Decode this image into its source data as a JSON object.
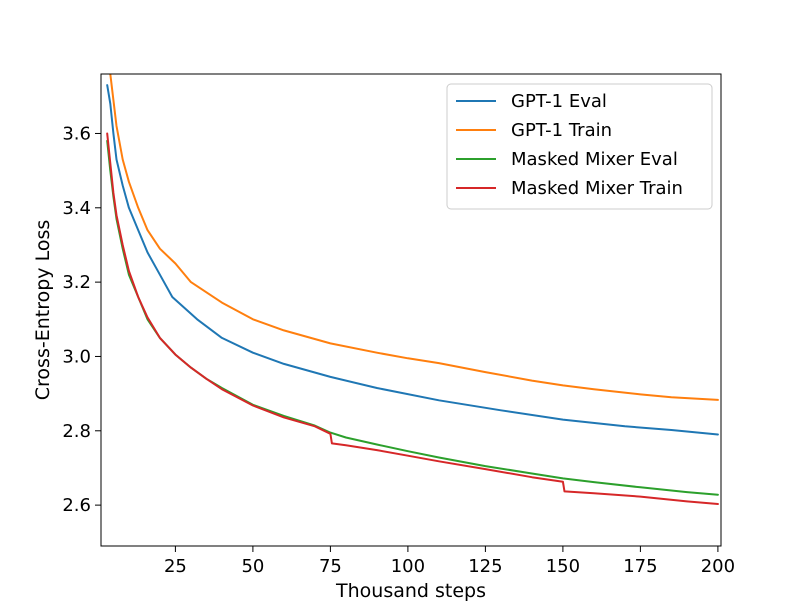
{
  "chart_data": {
    "type": "line",
    "title": "",
    "xlabel": "Thousand steps",
    "ylabel": "Cross-Entropy Loss",
    "xlim": [
      1,
      201
    ],
    "ylim": [
      2.49,
      3.76
    ],
    "xticks": [
      25,
      50,
      75,
      100,
      125,
      150,
      175,
      200
    ],
    "yticks": [
      2.6,
      2.8,
      3.0,
      3.2,
      3.4,
      3.6
    ],
    "xtick_labels": [
      "25",
      "50",
      "75",
      "100",
      "125",
      "150",
      "175",
      "200"
    ],
    "ytick_labels": [
      "2.6",
      "2.8",
      "3.0",
      "3.2",
      "3.4",
      "3.6"
    ],
    "grid": false,
    "legend_position": "top-right",
    "series": [
      {
        "name": "GPT-1 Eval",
        "color": "#1f77b4",
        "x": [
          3,
          4,
          5,
          6,
          8,
          10,
          13,
          16,
          20,
          24,
          28,
          32,
          40,
          50,
          60,
          75,
          90,
          110,
          130,
          150,
          170,
          185,
          200
        ],
        "y": [
          3.73,
          3.68,
          3.6,
          3.53,
          3.46,
          3.4,
          3.34,
          3.28,
          3.22,
          3.16,
          3.13,
          3.1,
          3.05,
          3.01,
          2.98,
          2.945,
          2.915,
          2.882,
          2.855,
          2.83,
          2.812,
          2.802,
          2.79
        ]
      },
      {
        "name": "GPT-1 Train",
        "color": "#ff7f0e",
        "x": [
          3,
          4,
          5,
          6,
          8,
          10,
          13,
          16,
          20,
          25,
          30,
          40,
          50,
          60,
          75,
          90,
          100,
          110,
          125,
          140,
          150,
          160,
          175,
          185,
          200
        ],
        "y": [
          3.86,
          3.76,
          3.69,
          3.62,
          3.53,
          3.47,
          3.4,
          3.34,
          3.29,
          3.25,
          3.2,
          3.145,
          3.1,
          3.07,
          3.035,
          3.01,
          2.995,
          2.982,
          2.958,
          2.935,
          2.922,
          2.912,
          2.898,
          2.89,
          2.883
        ]
      },
      {
        "name": "Masked Mixer Eval",
        "color": "#2ca02c",
        "x": [
          3,
          4,
          5,
          6,
          8,
          10,
          13,
          16,
          20,
          25,
          30,
          35,
          40,
          50,
          60,
          70,
          75,
          80,
          90,
          100,
          110,
          125,
          140,
          150,
          160,
          175,
          190,
          200
        ],
        "y": [
          3.58,
          3.5,
          3.43,
          3.37,
          3.29,
          3.22,
          3.16,
          3.1,
          3.05,
          3.005,
          2.97,
          2.94,
          2.915,
          2.87,
          2.84,
          2.814,
          2.795,
          2.782,
          2.763,
          2.745,
          2.728,
          2.705,
          2.685,
          2.672,
          2.662,
          2.648,
          2.635,
          2.628
        ]
      },
      {
        "name": "Masked Mixer Train",
        "color": "#d62728",
        "x": [
          3,
          4,
          5,
          6,
          8,
          10,
          13,
          16,
          20,
          25,
          30,
          35,
          40,
          50,
          60,
          70,
          75,
          75.5,
          80,
          90,
          100,
          110,
          125,
          140,
          150,
          150.5,
          160,
          175,
          190,
          200
        ],
        "y": [
          3.6,
          3.52,
          3.44,
          3.38,
          3.3,
          3.23,
          3.16,
          3.105,
          3.05,
          3.005,
          2.97,
          2.94,
          2.912,
          2.868,
          2.836,
          2.812,
          2.792,
          2.766,
          2.761,
          2.748,
          2.733,
          2.718,
          2.697,
          2.675,
          2.663,
          2.637,
          2.632,
          2.623,
          2.61,
          2.603
        ]
      }
    ]
  }
}
